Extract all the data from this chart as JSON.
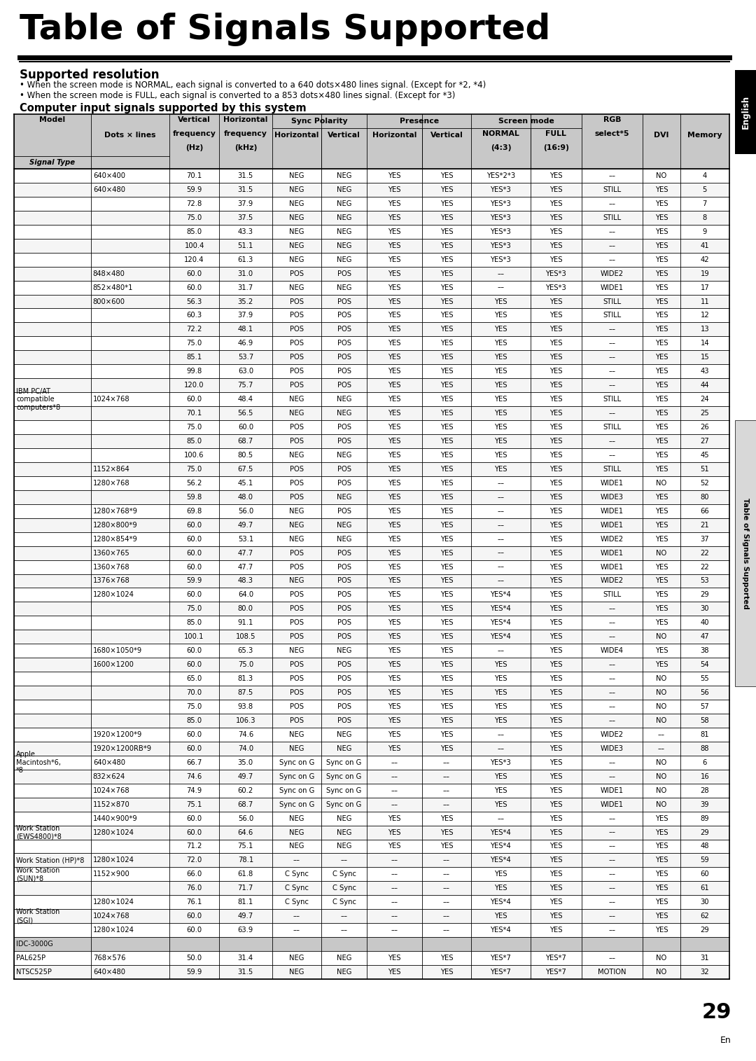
{
  "title": "Table of Signals Supported",
  "subtitle": "Supported resolution",
  "bullet1": "When the screen mode is NORMAL, each signal is converted to a 640 dots×480 lines signal. (Except for *2, *4)",
  "bullet2": "When the screen mode is FULL, each signal is converted to a 853 dots×480 lines signal. (Except for *3)",
  "section_title": "Computer input signals supported by this system",
  "page_number": "29",
  "rows": [
    [
      "",
      "640×400",
      "70.1",
      "31.5",
      "NEG",
      "NEG",
      "YES",
      "YES",
      "YES*2*3",
      "YES",
      "––",
      "NO",
      "4"
    ],
    [
      "",
      "640×480",
      "59.9",
      "31.5",
      "NEG",
      "NEG",
      "YES",
      "YES",
      "YES*3",
      "YES",
      "STILL",
      "YES",
      "5"
    ],
    [
      "",
      "",
      "72.8",
      "37.9",
      "NEG",
      "NEG",
      "YES",
      "YES",
      "YES*3",
      "YES",
      "––",
      "YES",
      "7"
    ],
    [
      "",
      "",
      "75.0",
      "37.5",
      "NEG",
      "NEG",
      "YES",
      "YES",
      "YES*3",
      "YES",
      "STILL",
      "YES",
      "8"
    ],
    [
      "",
      "",
      "85.0",
      "43.3",
      "NEG",
      "NEG",
      "YES",
      "YES",
      "YES*3",
      "YES",
      "––",
      "YES",
      "9"
    ],
    [
      "",
      "",
      "100.4",
      "51.1",
      "NEG",
      "NEG",
      "YES",
      "YES",
      "YES*3",
      "YES",
      "––",
      "YES",
      "41"
    ],
    [
      "",
      "",
      "120.4",
      "61.3",
      "NEG",
      "NEG",
      "YES",
      "YES",
      "YES*3",
      "YES",
      "––",
      "YES",
      "42"
    ],
    [
      "",
      "848×480",
      "60.0",
      "31.0",
      "POS",
      "POS",
      "YES",
      "YES",
      "––",
      "YES*3",
      "WIDE2",
      "YES",
      "19"
    ],
    [
      "",
      "852×480*1",
      "60.0",
      "31.7",
      "NEG",
      "NEG",
      "YES",
      "YES",
      "––",
      "YES*3",
      "WIDE1",
      "YES",
      "17"
    ],
    [
      "",
      "800×600",
      "56.3",
      "35.2",
      "POS",
      "POS",
      "YES",
      "YES",
      "YES",
      "YES",
      "STILL",
      "YES",
      "11"
    ],
    [
      "",
      "",
      "60.3",
      "37.9",
      "POS",
      "POS",
      "YES",
      "YES",
      "YES",
      "YES",
      "STILL",
      "YES",
      "12"
    ],
    [
      "",
      "",
      "72.2",
      "48.1",
      "POS",
      "POS",
      "YES",
      "YES",
      "YES",
      "YES",
      "––",
      "YES",
      "13"
    ],
    [
      "",
      "",
      "75.0",
      "46.9",
      "POS",
      "POS",
      "YES",
      "YES",
      "YES",
      "YES",
      "––",
      "YES",
      "14"
    ],
    [
      "",
      "",
      "85.1",
      "53.7",
      "POS",
      "POS",
      "YES",
      "YES",
      "YES",
      "YES",
      "––",
      "YES",
      "15"
    ],
    [
      "",
      "",
      "99.8",
      "63.0",
      "POS",
      "POS",
      "YES",
      "YES",
      "YES",
      "YES",
      "––",
      "YES",
      "43"
    ],
    [
      "",
      "",
      "120.0",
      "75.7",
      "POS",
      "POS",
      "YES",
      "YES",
      "YES",
      "YES",
      "––",
      "YES",
      "44"
    ],
    [
      "IBM PC/AT\ncompatible\ncomputers*8",
      "1024×768",
      "60.0",
      "48.4",
      "NEG",
      "NEG",
      "YES",
      "YES",
      "YES",
      "YES",
      "STILL",
      "YES",
      "24"
    ],
    [
      "",
      "",
      "70.1",
      "56.5",
      "NEG",
      "NEG",
      "YES",
      "YES",
      "YES",
      "YES",
      "––",
      "YES",
      "25"
    ],
    [
      "",
      "",
      "75.0",
      "60.0",
      "POS",
      "POS",
      "YES",
      "YES",
      "YES",
      "YES",
      "STILL",
      "YES",
      "26"
    ],
    [
      "",
      "",
      "85.0",
      "68.7",
      "POS",
      "POS",
      "YES",
      "YES",
      "YES",
      "YES",
      "––",
      "YES",
      "27"
    ],
    [
      "",
      "",
      "100.6",
      "80.5",
      "NEG",
      "NEG",
      "YES",
      "YES",
      "YES",
      "YES",
      "––",
      "YES",
      "45"
    ],
    [
      "",
      "1152×864",
      "75.0",
      "67.5",
      "POS",
      "POS",
      "YES",
      "YES",
      "YES",
      "YES",
      "STILL",
      "YES",
      "51"
    ],
    [
      "",
      "1280×768",
      "56.2",
      "45.1",
      "POS",
      "POS",
      "YES",
      "YES",
      "––",
      "YES",
      "WIDE1",
      "NO",
      "52"
    ],
    [
      "",
      "",
      "59.8",
      "48.0",
      "POS",
      "NEG",
      "YES",
      "YES",
      "––",
      "YES",
      "WIDE3",
      "YES",
      "80"
    ],
    [
      "",
      "1280×768*9",
      "69.8",
      "56.0",
      "NEG",
      "POS",
      "YES",
      "YES",
      "––",
      "YES",
      "WIDE1",
      "YES",
      "66"
    ],
    [
      "",
      "1280×800*9",
      "60.0",
      "49.7",
      "NEG",
      "NEG",
      "YES",
      "YES",
      "––",
      "YES",
      "WIDE1",
      "YES",
      "21"
    ],
    [
      "",
      "1280×854*9",
      "60.0",
      "53.1",
      "NEG",
      "NEG",
      "YES",
      "YES",
      "––",
      "YES",
      "WIDE2",
      "YES",
      "37"
    ],
    [
      "",
      "1360×765",
      "60.0",
      "47.7",
      "POS",
      "POS",
      "YES",
      "YES",
      "––",
      "YES",
      "WIDE1",
      "NO",
      "22"
    ],
    [
      "",
      "1360×768",
      "60.0",
      "47.7",
      "POS",
      "POS",
      "YES",
      "YES",
      "––",
      "YES",
      "WIDE1",
      "YES",
      "22"
    ],
    [
      "",
      "1376×768",
      "59.9",
      "48.3",
      "NEG",
      "POS",
      "YES",
      "YES",
      "––",
      "YES",
      "WIDE2",
      "YES",
      "53"
    ],
    [
      "",
      "1280×1024",
      "60.0",
      "64.0",
      "POS",
      "POS",
      "YES",
      "YES",
      "YES*4",
      "YES",
      "STILL",
      "YES",
      "29"
    ],
    [
      "",
      "",
      "75.0",
      "80.0",
      "POS",
      "POS",
      "YES",
      "YES",
      "YES*4",
      "YES",
      "––",
      "YES",
      "30"
    ],
    [
      "",
      "",
      "85.0",
      "91.1",
      "POS",
      "POS",
      "YES",
      "YES",
      "YES*4",
      "YES",
      "––",
      "YES",
      "40"
    ],
    [
      "",
      "",
      "100.1",
      "108.5",
      "POS",
      "POS",
      "YES",
      "YES",
      "YES*4",
      "YES",
      "––",
      "NO",
      "47"
    ],
    [
      "",
      "1680×1050*9",
      "60.0",
      "65.3",
      "NEG",
      "NEG",
      "YES",
      "YES",
      "––",
      "YES",
      "WIDE4",
      "YES",
      "38"
    ],
    [
      "",
      "1600×1200",
      "60.0",
      "75.0",
      "POS",
      "POS",
      "YES",
      "YES",
      "YES",
      "YES",
      "––",
      "YES",
      "54"
    ],
    [
      "",
      "",
      "65.0",
      "81.3",
      "POS",
      "POS",
      "YES",
      "YES",
      "YES",
      "YES",
      "––",
      "NO",
      "55"
    ],
    [
      "",
      "",
      "70.0",
      "87.5",
      "POS",
      "POS",
      "YES",
      "YES",
      "YES",
      "YES",
      "––",
      "NO",
      "56"
    ],
    [
      "",
      "",
      "75.0",
      "93.8",
      "POS",
      "POS",
      "YES",
      "YES",
      "YES",
      "YES",
      "––",
      "NO",
      "57"
    ],
    [
      "",
      "",
      "85.0",
      "106.3",
      "POS",
      "POS",
      "YES",
      "YES",
      "YES",
      "YES",
      "––",
      "NO",
      "58"
    ],
    [
      "",
      "1920×1200*9",
      "60.0",
      "74.6",
      "NEG",
      "NEG",
      "YES",
      "YES",
      "––",
      "YES",
      "WIDE2",
      "––",
      "81"
    ],
    [
      "",
      "1920×1200RB*9",
      "60.0",
      "74.0",
      "NEG",
      "NEG",
      "YES",
      "YES",
      "––",
      "YES",
      "WIDE3",
      "––",
      "88"
    ],
    [
      "Apple\nMacintosh*6,\n*8",
      "640×480",
      "66.7",
      "35.0",
      "Sync on G",
      "Sync on G",
      "––",
      "––",
      "YES*3",
      "YES",
      "––",
      "NO",
      "6"
    ],
    [
      "",
      "832×624",
      "74.6",
      "49.7",
      "Sync on G",
      "Sync on G",
      "––",
      "––",
      "YES",
      "YES",
      "––",
      "NO",
      "16"
    ],
    [
      "",
      "1024×768",
      "74.9",
      "60.2",
      "Sync on G",
      "Sync on G",
      "––",
      "––",
      "YES",
      "YES",
      "WIDE1",
      "NO",
      "28"
    ],
    [
      "",
      "1152×870",
      "75.1",
      "68.7",
      "Sync on G",
      "Sync on G",
      "––",
      "––",
      "YES",
      "YES",
      "WIDE1",
      "NO",
      "39"
    ],
    [
      "",
      "1440×900*9",
      "60.0",
      "56.0",
      "NEG",
      "NEG",
      "YES",
      "YES",
      "––",
      "YES",
      "––",
      "YES",
      "89"
    ],
    [
      "Work Station\n(EWS4800)*8",
      "1280×1024",
      "60.0",
      "64.6",
      "NEG",
      "NEG",
      "YES",
      "YES",
      "YES*4",
      "YES",
      "––",
      "YES",
      "29"
    ],
    [
      "",
      "",
      "71.2",
      "75.1",
      "NEG",
      "NEG",
      "YES",
      "YES",
      "YES*4",
      "YES",
      "––",
      "YES",
      "48"
    ],
    [
      "Work Station (HP)*8",
      "1280×1024",
      "72.0",
      "78.1",
      "––",
      "––",
      "––",
      "––",
      "YES*4",
      "YES",
      "––",
      "YES",
      "59"
    ],
    [
      "Work Station\n(SUN)*8",
      "1152×900",
      "66.0",
      "61.8",
      "C Sync",
      "C Sync",
      "––",
      "––",
      "YES",
      "YES",
      "––",
      "YES",
      "60"
    ],
    [
      "",
      "",
      "76.0",
      "71.7",
      "C Sync",
      "C Sync",
      "––",
      "––",
      "YES",
      "YES",
      "––",
      "YES",
      "61"
    ],
    [
      "",
      "1280×1024",
      "76.1",
      "81.1",
      "C Sync",
      "C Sync",
      "––",
      "––",
      "YES*4",
      "YES",
      "––",
      "YES",
      "30"
    ],
    [
      "Work Station\n(SGI)",
      "1024×768",
      "60.0",
      "49.7",
      "––",
      "––",
      "––",
      "––",
      "YES",
      "YES",
      "––",
      "YES",
      "62"
    ],
    [
      "",
      "1280×1024",
      "60.0",
      "63.9",
      "––",
      "––",
      "––",
      "––",
      "YES*4",
      "YES",
      "––",
      "YES",
      "29"
    ],
    [
      "IDC-3000G",
      "",
      "",
      "",
      "",
      "",
      "",
      "",
      "",
      "",
      "",
      "",
      ""
    ],
    [
      "PAL625P",
      "768×576",
      "50.0",
      "31.4",
      "NEG",
      "NEG",
      "YES",
      "YES",
      "YES*7",
      "YES*7",
      "––",
      "NO",
      "31"
    ],
    [
      "NTSC525P",
      "640×480",
      "59.9",
      "31.5",
      "NEG",
      "NEG",
      "YES",
      "YES",
      "YES*7",
      "YES*7",
      "MOTION",
      "NO",
      "32"
    ]
  ],
  "header_gray": "#c8c8c8",
  "row_alt": "#f5f5f5",
  "row_white": "#ffffff"
}
